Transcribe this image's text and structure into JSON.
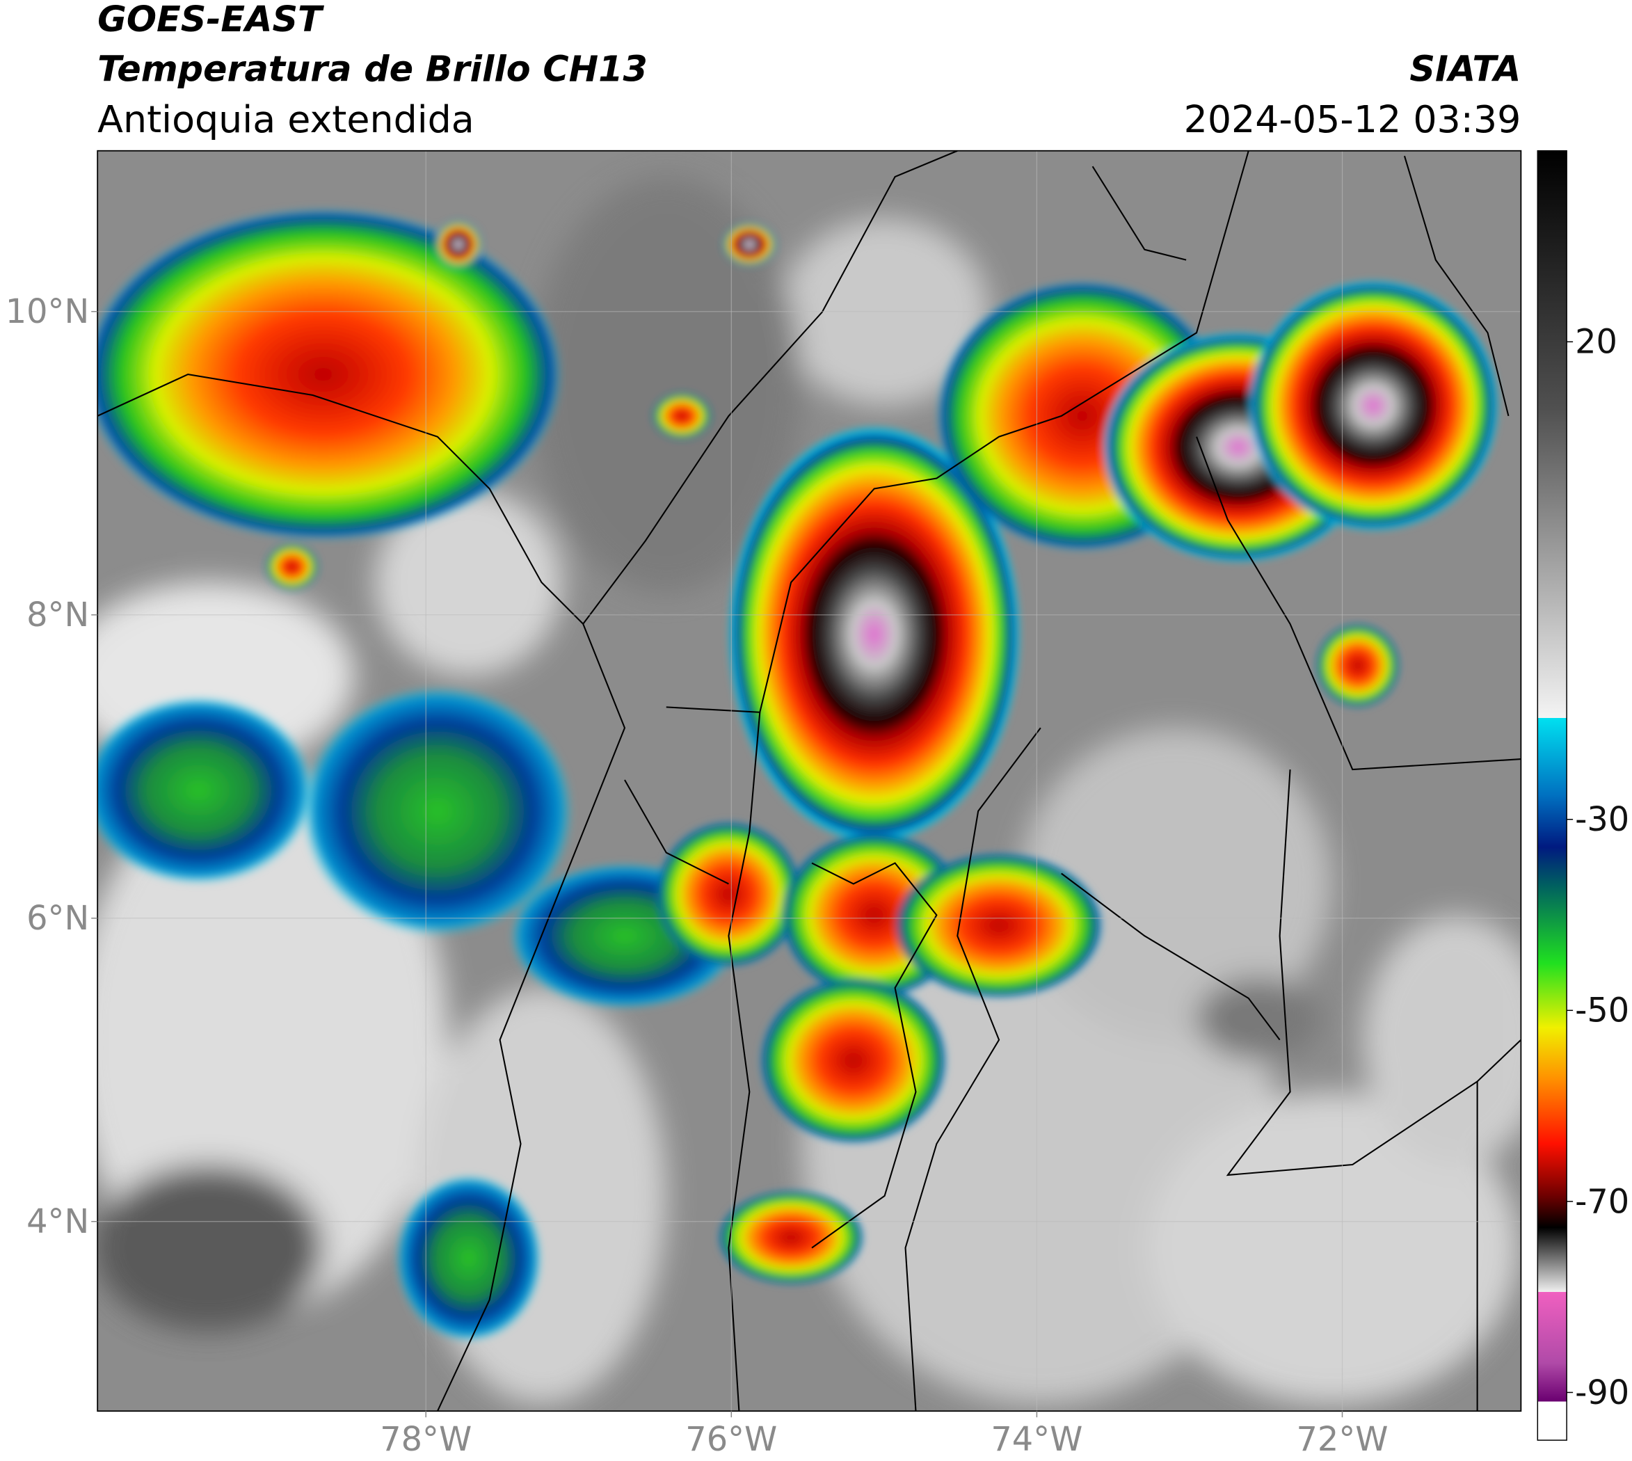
{
  "header": {
    "source": "GOES-EAST",
    "product": "Temperatura de Brillo CH13",
    "region": "Antioquia extendida",
    "agency": "SIATA",
    "datetime": "2024-05-12 03:39"
  },
  "map": {
    "xlim": [
      -80.15,
      -70.83
    ],
    "ylim": [
      2.75,
      11.06
    ],
    "xticks": [
      {
        "value": -78,
        "label": "78°W"
      },
      {
        "value": -76,
        "label": "76°W"
      },
      {
        "value": -74,
        "label": "74°W"
      },
      {
        "value": -72,
        "label": "72°W"
      }
    ],
    "yticks": [
      {
        "value": 10,
        "label": "10°N"
      },
      {
        "value": 8,
        "label": "8°N"
      },
      {
        "value": 6,
        "label": "6°N"
      },
      {
        "value": 4,
        "label": "4°N"
      }
    ],
    "grid": true
  },
  "colorbar": {
    "lim": [
      -95,
      40
    ],
    "ticks": [
      20,
      -30,
      -50,
      -70,
      -90
    ]
  }
}
